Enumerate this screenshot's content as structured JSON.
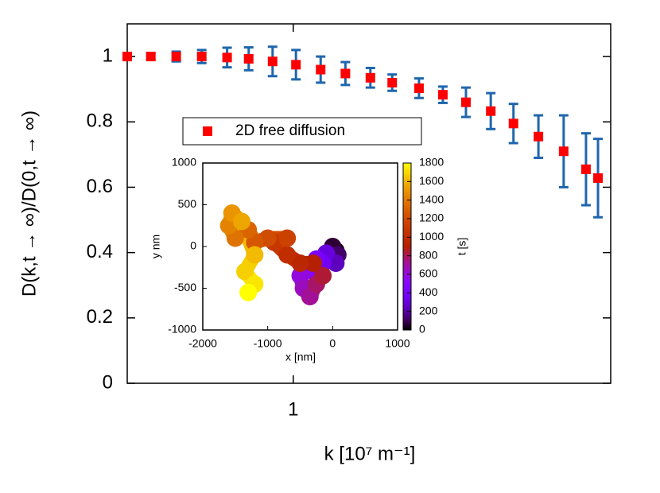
{
  "chart_data": [
    {
      "type": "scatter",
      "x_label": "k [10⁷ m⁻¹]",
      "y_label": "D(k,t → ∞)/D(0,t → ∞)",
      "x_log": true,
      "xlim": [
        0.3,
        10
      ],
      "xticks": [
        1
      ],
      "ylim": [
        0,
        1.1
      ],
      "yticks": [
        0,
        0.2,
        0.4,
        0.6,
        0.8,
        1
      ],
      "legend": "top-left",
      "series": [
        {
          "name": "2D free diffusion",
          "color": "#ff0000",
          "error_color": "#1f66ad",
          "x": [
            0.3,
            0.356,
            0.428,
            0.515,
            0.619,
            0.724,
            0.861,
            1.02,
            1.22,
            1.46,
            1.75,
            2.05,
            2.49,
            2.96,
            3.5,
            4.19,
            4.94,
            5.92,
            7.11,
            8.36,
            9.12
          ],
          "values": [
            1.0,
            1.0,
            1.0,
            1.0,
            0.997,
            0.993,
            0.985,
            0.975,
            0.96,
            0.948,
            0.935,
            0.92,
            0.903,
            0.883,
            0.86,
            0.833,
            0.795,
            0.755,
            0.71,
            0.655,
            0.628
          ],
          "errors": [
            0.005,
            0.01,
            0.015,
            0.02,
            0.03,
            0.035,
            0.045,
            0.045,
            0.04,
            0.035,
            0.03,
            0.025,
            0.03,
            0.025,
            0.045,
            0.055,
            0.06,
            0.065,
            0.11,
            0.11,
            0.12
          ]
        }
      ]
    },
    {
      "type": "trajectory",
      "x_label": "x [nm]",
      "y_label": "y nm",
      "c_label": "t [s]",
      "xlim": [
        -2000,
        1000
      ],
      "xticks": [
        -2000,
        -1000,
        0,
        1000
      ],
      "ylim": [
        -1000,
        1000
      ],
      "yticks": [
        -1000,
        -500,
        0,
        500,
        1000
      ],
      "clim": [
        0,
        1800
      ],
      "cticks": [
        0,
        200,
        400,
        600,
        800,
        1000,
        1200,
        1400,
        1600,
        1800
      ],
      "x": [
        50,
        0,
        80,
        -50,
        50,
        -100,
        -150,
        -250,
        -300,
        -400,
        -500,
        -450,
        -350,
        -250,
        -150,
        -300,
        -500,
        -700,
        -900,
        -700,
        -1000,
        -1200,
        -1300,
        -1500,
        -1600,
        -1550,
        -1400,
        -1200,
        -1350,
        -1200,
        -1300
      ],
      "y": [
        -50,
        0,
        -100,
        -150,
        -200,
        -80,
        -200,
        -150,
        -300,
        -250,
        -350,
        -500,
        -600,
        -450,
        -350,
        -200,
        -200,
        -100,
        50,
        100,
        100,
        50,
        200,
        100,
        250,
        400,
        300,
        -100,
        -300,
        -450,
        -550
      ],
      "t": [
        0,
        60,
        120,
        180,
        240,
        300,
        360,
        420,
        480,
        540,
        600,
        660,
        720,
        780,
        840,
        900,
        960,
        1020,
        1080,
        1140,
        1200,
        1260,
        1320,
        1380,
        1440,
        1500,
        1560,
        1620,
        1680,
        1740,
        1800
      ]
    }
  ]
}
